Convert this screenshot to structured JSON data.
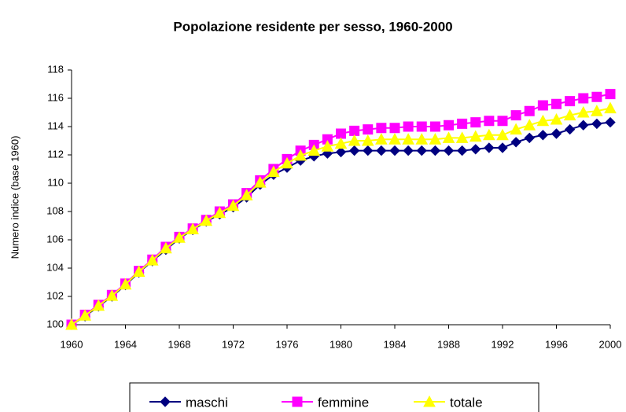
{
  "chart_data": {
    "type": "line",
    "title": "Popolazione residente per sesso, 1960-2000",
    "y_label": "Numero indice (base 1960)",
    "x": [
      1960,
      1961,
      1962,
      1963,
      1964,
      1965,
      1966,
      1967,
      1968,
      1969,
      1970,
      1971,
      1972,
      1973,
      1974,
      1975,
      1976,
      1977,
      1978,
      1979,
      1980,
      1981,
      1982,
      1983,
      1984,
      1985,
      1986,
      1987,
      1988,
      1989,
      1990,
      1991,
      1992,
      1993,
      1994,
      1995,
      1996,
      1997,
      1998,
      1999,
      2000
    ],
    "series": [
      {
        "name": "maschi",
        "color": "#000080",
        "marker": "diamond",
        "values": [
          100,
          100.6,
          101.3,
          102.0,
          102.8,
          103.7,
          104.5,
          105.3,
          106.1,
          106.7,
          107.3,
          107.8,
          108.3,
          109.0,
          109.9,
          110.6,
          111.1,
          111.6,
          111.9,
          112.1,
          112.2,
          112.3,
          112.3,
          112.3,
          112.3,
          112.3,
          112.3,
          112.3,
          112.3,
          112.3,
          112.4,
          112.5,
          112.5,
          112.9,
          113.2,
          113.4,
          113.5,
          113.8,
          114.1,
          114.2,
          114.3
        ]
      },
      {
        "name": "femmine",
        "color": "#ff00ff",
        "marker": "square",
        "values": [
          100,
          100.7,
          101.4,
          102.1,
          102.9,
          103.8,
          104.6,
          105.5,
          106.2,
          106.8,
          107.4,
          108.0,
          108.5,
          109.3,
          110.2,
          111.0,
          111.7,
          112.3,
          112.7,
          113.1,
          113.5,
          113.7,
          113.8,
          113.9,
          113.9,
          114.0,
          114.0,
          114.0,
          114.1,
          114.2,
          114.3,
          114.4,
          114.4,
          114.8,
          115.1,
          115.5,
          115.6,
          115.8,
          116.0,
          116.1,
          116.3
        ]
      },
      {
        "name": "totale",
        "color": "#ffff00",
        "marker": "triangle",
        "values": [
          100,
          100.65,
          101.35,
          102.05,
          102.85,
          103.75,
          104.55,
          105.4,
          106.15,
          106.75,
          107.35,
          107.9,
          108.4,
          109.15,
          110.05,
          110.8,
          111.4,
          111.95,
          112.3,
          112.6,
          112.8,
          113.0,
          113.0,
          113.1,
          113.1,
          113.1,
          113.1,
          113.1,
          113.2,
          113.2,
          113.3,
          113.4,
          113.4,
          113.8,
          114.1,
          114.4,
          114.5,
          114.8,
          115.0,
          115.1,
          115.3
        ]
      }
    ],
    "xlim": [
      1960,
      2000
    ],
    "xticks": [
      1960,
      1964,
      1968,
      1972,
      1976,
      1980,
      1984,
      1988,
      1992,
      1996,
      2000
    ],
    "ylim": [
      100,
      118
    ],
    "yticks": [
      100,
      102,
      104,
      106,
      108,
      110,
      112,
      114,
      116,
      118
    ],
    "grid": false,
    "legend": "bottom"
  }
}
